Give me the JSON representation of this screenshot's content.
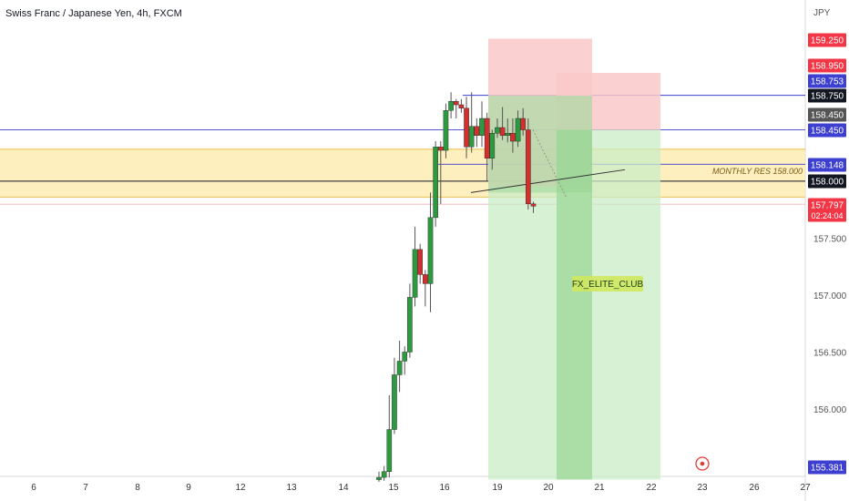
{
  "header": {
    "title": "Swiss Franc / Japanese Yen, 4h, FXCM",
    "currency": "JPY"
  },
  "colors": {
    "bull": "#2e9a3f",
    "bear": "#d32f2f",
    "wick": "#555555",
    "zone_fill": "#fde9a8",
    "zone_line": "#e8b733",
    "profit_fill": "#c9ecc6",
    "profit_dark": "#8fd18a",
    "profit_mid": "#a8dca4",
    "loss_fill": "#f9c8c8",
    "blue": "#3c3fd0",
    "black": "#131722",
    "red_tag": "#f23645",
    "gray_tag": "#555555"
  },
  "chart_data": {
    "type": "candlestick",
    "instrument": "Swiss Franc / Japanese Yen",
    "timeframe": "4h",
    "source": "FXCM",
    "ylim": [
      155.35,
      159.45
    ],
    "x_ticks": [
      "6",
      "7",
      "8",
      "9",
      "12",
      "13",
      "14",
      "15",
      "16",
      "19",
      "20",
      "21",
      "22",
      "23",
      "26",
      "27"
    ],
    "y_ticks": [
      {
        "value": 157.5,
        "label": "157.500"
      },
      {
        "value": 157.0,
        "label": "157.000"
      },
      {
        "value": 156.5,
        "label": "156.500"
      },
      {
        "value": 156.0,
        "label": "156.000"
      }
    ],
    "candles": [
      {
        "o": 155.38,
        "h": 155.45,
        "l": 155.36,
        "c": 155.4
      },
      {
        "o": 155.4,
        "h": 155.5,
        "l": 155.37,
        "c": 155.45
      },
      {
        "o": 155.45,
        "h": 156.12,
        "l": 155.4,
        "c": 155.82
      },
      {
        "o": 155.82,
        "h": 156.45,
        "l": 155.78,
        "c": 156.3
      },
      {
        "o": 156.3,
        "h": 156.6,
        "l": 156.15,
        "c": 156.42
      },
      {
        "o": 156.42,
        "h": 156.55,
        "l": 156.3,
        "c": 156.5
      },
      {
        "o": 156.5,
        "h": 157.1,
        "l": 156.45,
        "c": 156.98
      },
      {
        "o": 156.98,
        "h": 157.6,
        "l": 156.9,
        "c": 157.4
      },
      {
        "o": 157.4,
        "h": 157.45,
        "l": 157.1,
        "c": 157.18
      },
      {
        "o": 157.18,
        "h": 157.22,
        "l": 156.9,
        "c": 157.1
      },
      {
        "o": 157.1,
        "h": 157.9,
        "l": 156.85,
        "c": 157.68
      },
      {
        "o": 157.68,
        "h": 158.35,
        "l": 157.6,
        "c": 158.3
      },
      {
        "o": 158.3,
        "h": 158.35,
        "l": 157.8,
        "c": 158.27
      },
      {
        "o": 158.27,
        "h": 158.68,
        "l": 158.2,
        "c": 158.62
      },
      {
        "o": 158.62,
        "h": 158.78,
        "l": 158.55,
        "c": 158.7
      },
      {
        "o": 158.7,
        "h": 158.72,
        "l": 158.55,
        "c": 158.67
      },
      {
        "o": 158.67,
        "h": 158.72,
        "l": 158.6,
        "c": 158.64
      },
      {
        "o": 158.64,
        "h": 158.74,
        "l": 158.2,
        "c": 158.3
      },
      {
        "o": 158.3,
        "h": 158.78,
        "l": 158.25,
        "c": 158.48
      },
      {
        "o": 158.48,
        "h": 158.55,
        "l": 158.3,
        "c": 158.4
      },
      {
        "o": 158.4,
        "h": 158.7,
        "l": 158.3,
        "c": 158.55
      },
      {
        "o": 158.55,
        "h": 158.6,
        "l": 158.0,
        "c": 158.2
      },
      {
        "o": 158.2,
        "h": 158.45,
        "l": 158.1,
        "c": 158.42
      },
      {
        "o": 158.42,
        "h": 158.55,
        "l": 158.38,
        "c": 158.47
      },
      {
        "o": 158.47,
        "h": 158.65,
        "l": 158.36,
        "c": 158.4
      },
      {
        "o": 158.4,
        "h": 158.55,
        "l": 158.34,
        "c": 158.42
      },
      {
        "o": 158.42,
        "h": 158.55,
        "l": 158.25,
        "c": 158.35
      },
      {
        "o": 158.35,
        "h": 158.62,
        "l": 158.3,
        "c": 158.55
      },
      {
        "o": 158.55,
        "h": 158.64,
        "l": 158.4,
        "c": 158.45
      },
      {
        "o": 158.45,
        "h": 158.55,
        "l": 157.75,
        "c": 157.8
      },
      {
        "o": 157.8,
        "h": 157.82,
        "l": 157.72,
        "c": 157.78
      }
    ],
    "price_tags": [
      {
        "value": 159.25,
        "label": "159.250",
        "color": "#f23645"
      },
      {
        "value": 158.95,
        "label": "158.950",
        "color": "#f23645"
      },
      {
        "value": 158.753,
        "label": "158.753",
        "color": "#3c3fd0"
      },
      {
        "value": 158.75,
        "label": "158.750",
        "color": "#131722"
      },
      {
        "value": 158.45,
        "label": "158.450",
        "color": "#555555"
      },
      {
        "value": 158.45,
        "label": "158.450",
        "color": "#3c3fd0"
      },
      {
        "value": 158.148,
        "label": "158.148",
        "color": "#3c3fd0"
      },
      {
        "value": 158.0,
        "label": "158.000",
        "color": "#131722"
      },
      {
        "value": 157.797,
        "label": "157.797",
        "color": "#f23645",
        "sub": "02:24:04"
      },
      {
        "value": 155.381,
        "label": "155.381",
        "color": "#3c3fd0"
      }
    ],
    "annotations": {
      "zone_label": "MONTHLY RES 158.000",
      "box_label": "FX_ELITE_CLUB"
    }
  }
}
